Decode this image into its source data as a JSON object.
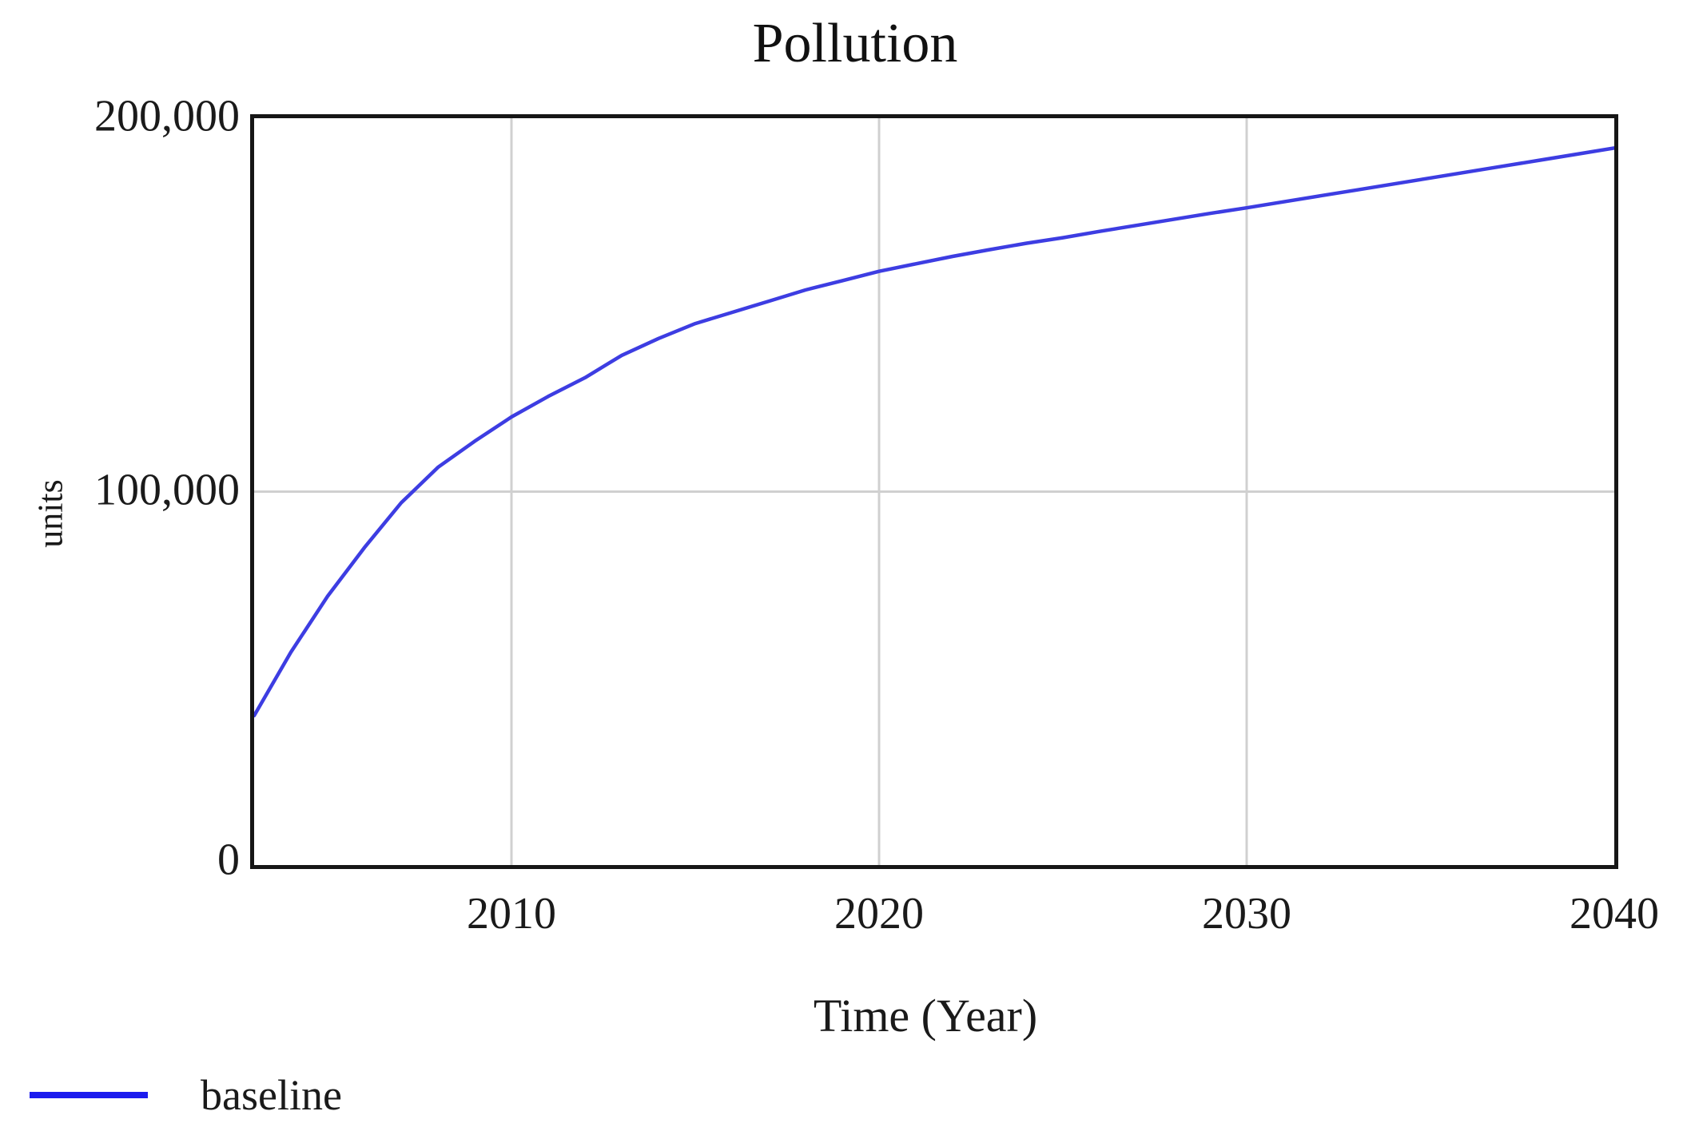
{
  "title": "Pollution",
  "colors": {
    "background": "#ffffff",
    "axis_frame": "#161616",
    "grid": "#d0d0d0",
    "text": "#1a1a1a",
    "series_blue": "#3d3de2",
    "legend_blue": "#1b1bee"
  },
  "chart_data": {
    "type": "line",
    "title": "Pollution",
    "xlabel": "Time (Year)",
    "ylabel": "units",
    "xlim": [
      2003,
      2040
    ],
    "ylim": [
      0,
      200000
    ],
    "x_ticks": [
      2010,
      2020,
      2030,
      2040
    ],
    "x_tick_labels": [
      "2010",
      "2020",
      "2030",
      "2040"
    ],
    "y_ticks": [
      0,
      100000,
      200000
    ],
    "y_tick_labels": [
      "0",
      "100,000",
      "200,000"
    ],
    "grid": true,
    "legend_position": "bottom-left",
    "series": [
      {
        "name": "baseline",
        "color": "#3d3de2",
        "x": [
          2003,
          2004,
          2005,
          2006,
          2007,
          2008,
          2009,
          2010,
          2011,
          2012,
          2013,
          2014,
          2015,
          2016,
          2017,
          2018,
          2019,
          2020,
          2021,
          2022,
          2023,
          2024,
          2025,
          2026,
          2027,
          2028,
          2029,
          2030,
          2031,
          2032,
          2033,
          2034,
          2035,
          2036,
          2037,
          2038,
          2039,
          2040
        ],
        "y": [
          40000,
          57000,
          72000,
          85000,
          97000,
          106500,
          113500,
          120000,
          125500,
          130500,
          136500,
          141000,
          145000,
          148000,
          151000,
          154000,
          156500,
          159000,
          161000,
          163000,
          164800,
          166500,
          168000,
          169700,
          171300,
          172900,
          174500,
          176000,
          177600,
          179200,
          180800,
          182400,
          184000,
          185600,
          187200,
          188800,
          190400,
          192000
        ]
      }
    ]
  },
  "legend": {
    "items": [
      {
        "label": "baseline",
        "color": "#1b1bee"
      }
    ]
  }
}
